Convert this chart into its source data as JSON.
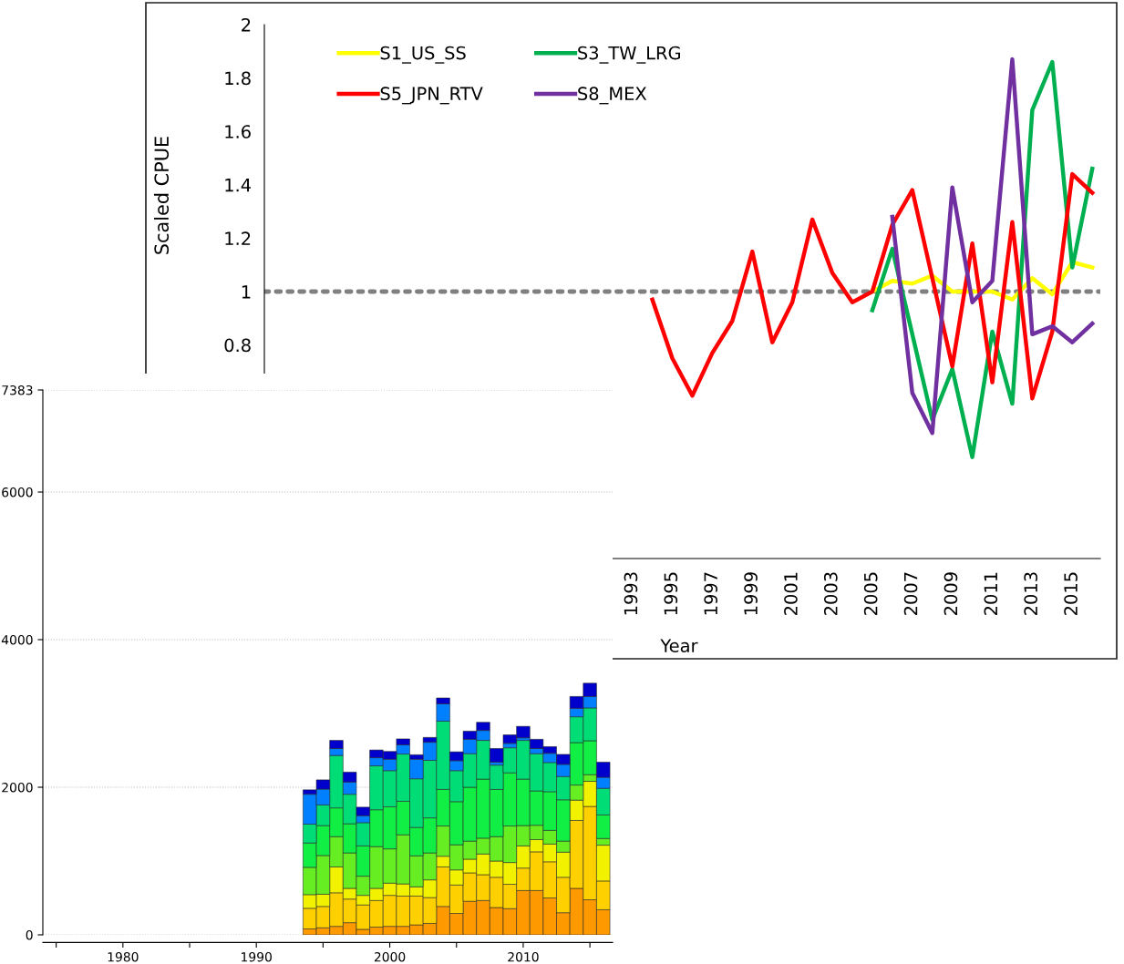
{
  "chart_data": [
    {
      "type": "line",
      "ylabel": "Scaled CPUE",
      "xlabel": "Year",
      "xlim": [
        1974.6,
        2016.4
      ],
      "xticks": [
        1993,
        1995,
        1997,
        1999,
        2001,
        2003,
        2005,
        2007,
        2009,
        2011,
        2013,
        2015
      ],
      "ylim": [
        0,
        2
      ],
      "yticks": [
        0.8,
        1,
        1.2,
        1.4,
        1.6,
        1.8,
        2
      ],
      "legend": "top left",
      "grid": false,
      "series": [
        {
          "name": "S1_US_SS",
          "color": "#ffff00",
          "x": [
            2005,
            2006,
            2007,
            2008,
            2009,
            2010,
            2011,
            2012,
            2013,
            2014,
            2015,
            2016
          ],
          "values": [
            1.0,
            1.04,
            1.03,
            1.06,
            1.0,
            1.0,
            1.0,
            0.97,
            1.05,
            0.99,
            1.11,
            1.09
          ]
        },
        {
          "name": "S3_TW_LRG",
          "color": "#00b050",
          "x": [
            2005,
            2006,
            2007,
            2008,
            2009,
            2010,
            2011,
            2012,
            2013,
            2014,
            2015,
            2016
          ],
          "values": [
            0.93,
            1.16,
            0.84,
            0.52,
            0.71,
            0.38,
            0.85,
            0.58,
            1.68,
            1.86,
            1.09,
            1.46
          ]
        },
        {
          "name": "S5_JPN_RTV",
          "color": "#ff0000",
          "x": [
            1994,
            1995,
            1996,
            1997,
            1998,
            1999,
            2000,
            2001,
            2002,
            2003,
            2004,
            2005,
            2006,
            2007,
            2008,
            2009,
            2010,
            2011,
            2012,
            2013,
            2014,
            2015,
            2016
          ],
          "values": [
            0.97,
            0.75,
            0.61,
            0.77,
            0.89,
            1.15,
            0.81,
            0.96,
            1.27,
            1.07,
            0.96,
            1.0,
            1.25,
            1.38,
            1.05,
            0.72,
            1.18,
            0.66,
            1.26,
            0.6,
            0.85,
            1.44,
            1.37
          ]
        },
        {
          "name": "S8_MEX",
          "color": "#7030a0",
          "x": [
            2006,
            2007,
            2008,
            2009,
            2010,
            2011,
            2012,
            2013,
            2014,
            2015,
            2016
          ],
          "values": [
            1.28,
            0.62,
            0.47,
            1.39,
            0.96,
            1.04,
            1.87,
            0.84,
            0.87,
            0.81,
            0.88
          ]
        }
      ],
      "ref_lines": [
        {
          "axis": "y",
          "value": 1,
          "color": "#808080",
          "line_style": "dotted"
        }
      ]
    },
    {
      "type": "bar",
      "stacked": true,
      "grid": "y",
      "x": [
        1994,
        1995,
        1996,
        1997,
        1998,
        1999,
        2000,
        2001,
        2002,
        2003,
        2004,
        2005,
        2006,
        2007,
        2008,
        2009,
        2010,
        2011,
        2012,
        2013,
        2014,
        2015,
        2016
      ],
      "xlim": [
        1974,
        2016.7
      ],
      "xticks": [
        {
          "value": 1975,
          "label": null
        },
        1980,
        {
          "value": 1985,
          "label": null
        },
        1990,
        {
          "value": 1995,
          "label": null
        },
        2000,
        {
          "value": 2005,
          "label": null
        },
        2010,
        {
          "value": 2015,
          "label": null
        }
      ],
      "ylim": [
        0,
        7383
      ],
      "yticks": [
        0,
        2000,
        4000,
        6000,
        7383
      ],
      "series": [
        {
          "color": "#ff9900",
          "values": [
            80,
            95,
            115,
            165,
            75,
            105,
            115,
            115,
            135,
            155,
            385,
            290,
            455,
            465,
            370,
            355,
            600,
            600,
            500,
            300,
            630,
            475,
            340
          ]
        },
        {
          "color": "#ffd000",
          "values": [
            280,
            290,
            455,
            320,
            330,
            360,
            420,
            410,
            390,
            350,
            535,
            385,
            385,
            350,
            410,
            330,
            305,
            525,
            490,
            480,
            920,
            1265,
            390
          ]
        },
        {
          "color": "#f2f200",
          "values": [
            185,
            165,
            350,
            145,
            130,
            165,
            165,
            165,
            125,
            240,
            145,
            205,
            185,
            280,
            220,
            295,
            300,
            165,
            240,
            340,
            275,
            340,
            485
          ]
        },
        {
          "color": "#66ee22",
          "values": [
            370,
            525,
            410,
            480,
            260,
            565,
            465,
            665,
            420,
            365,
            410,
            340,
            245,
            215,
            330,
            495,
            275,
            195,
            185,
            150,
            205,
            90,
            90
          ]
        },
        {
          "color": "#11ee44",
          "values": [
            330,
            405,
            390,
            395,
            410,
            500,
            570,
            455,
            385,
            475,
            495,
            585,
            730,
            800,
            640,
            720,
            630,
            465,
            525,
            560,
            575,
            460,
            320
          ]
        },
        {
          "color": "#00dd77",
          "values": [
            255,
            280,
            710,
            400,
            315,
            595,
            490,
            640,
            660,
            780,
            925,
            420,
            455,
            525,
            330,
            340,
            525,
            505,
            395,
            315,
            350,
            445,
            360
          ]
        },
        {
          "color": "#0080ff",
          "values": [
            405,
            215,
            95,
            165,
            95,
            110,
            155,
            125,
            265,
            245,
            235,
            135,
            195,
            135,
            40,
            60,
            35,
            70,
            125,
            165,
            115,
            155,
            150
          ]
        },
        {
          "color": "#0000cc",
          "values": [
            60,
            125,
            110,
            135,
            115,
            105,
            105,
            80,
            60,
            65,
            80,
            120,
            110,
            110,
            185,
            115,
            155,
            125,
            90,
            135,
            160,
            180,
            205
          ]
        }
      ]
    }
  ]
}
